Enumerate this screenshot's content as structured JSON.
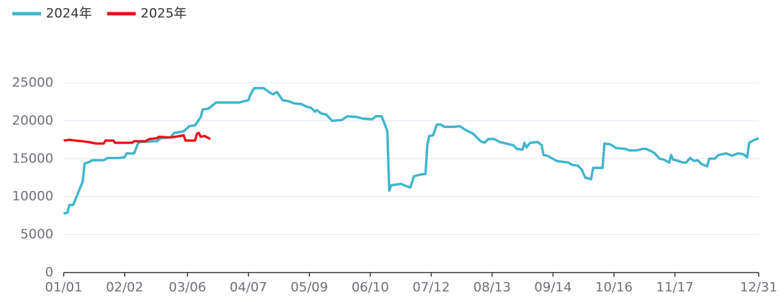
{
  "chart_data": {
    "type": "line",
    "xlim": [
      0,
      365
    ],
    "xticks": [
      {
        "value": 0,
        "label": "01/01"
      },
      {
        "value": 32,
        "label": "02/02"
      },
      {
        "value": 65,
        "label": "03/06"
      },
      {
        "value": 97,
        "label": "04/07"
      },
      {
        "value": 129,
        "label": "05/09"
      },
      {
        "value": 161,
        "label": "06/10"
      },
      {
        "value": 193,
        "label": "07/12"
      },
      {
        "value": 225,
        "label": "08/13"
      },
      {
        "value": 257,
        "label": "09/14"
      },
      {
        "value": 289,
        "label": "10/16"
      },
      {
        "value": 321,
        "label": "11/17"
      },
      {
        "value": 365,
        "label": "12/31"
      }
    ],
    "ylim": [
      0,
      25000
    ],
    "yticks": [
      0,
      5000,
      10000,
      15000,
      20000,
      25000
    ],
    "grid": true,
    "legend": "top-left",
    "series": [
      {
        "name": "2024年",
        "color": "#40b4cc",
        "x": [
          0,
          2,
          3,
          5,
          10,
          11,
          13,
          15,
          21,
          23,
          29,
          32,
          33,
          37,
          39,
          40,
          49,
          51,
          56,
          58,
          63,
          66,
          69,
          72,
          73,
          76,
          80,
          89,
          92,
          95,
          97,
          98,
          100,
          105,
          109,
          110,
          112,
          115,
          118,
          121,
          125,
          127,
          130,
          132,
          133,
          135,
          138,
          141,
          146,
          149,
          154,
          157,
          162,
          164,
          167,
          169,
          170,
          171,
          172,
          177,
          180,
          182,
          184,
          187,
          190,
          191,
          192,
          194,
          196,
          198,
          200,
          205,
          208,
          211,
          215,
          219,
          221,
          223,
          226,
          229,
          236,
          238,
          241,
          242,
          243,
          245,
          249,
          251,
          252,
          254,
          259,
          265,
          267,
          270,
          272,
          274,
          277,
          278,
          283,
          284,
          287,
          289,
          290,
          295,
          297,
          301,
          304,
          306,
          310,
          313,
          315,
          318,
          319,
          320,
          323,
          325,
          327,
          329,
          331,
          333,
          335,
          338,
          339,
          342,
          344,
          348,
          351,
          354,
          357,
          359,
          360,
          362,
          364,
          365
        ],
        "values": [
          7800,
          7900,
          8900,
          8900,
          12000,
          14400,
          14500,
          14800,
          14800,
          15100,
          15100,
          15200,
          15700,
          15700,
          17000,
          17200,
          17300,
          17700,
          17800,
          18400,
          18600,
          19300,
          19400,
          20500,
          21500,
          21600,
          22400,
          22400,
          22400,
          22600,
          22700,
          23400,
          24300,
          24300,
          23600,
          23500,
          23800,
          22700,
          22600,
          22300,
          22200,
          21900,
          21700,
          21200,
          21400,
          21000,
          20800,
          20000,
          20100,
          20600,
          20500,
          20300,
          20200,
          20600,
          20600,
          19300,
          18600,
          10800,
          11500,
          11700,
          11400,
          11200,
          12700,
          12900,
          13000,
          16800,
          18000,
          18100,
          19500,
          19500,
          19200,
          19200,
          19300,
          18800,
          18300,
          17300,
          17100,
          17600,
          17600,
          17200,
          16800,
          16300,
          16200,
          17100,
          16500,
          17100,
          17200,
          16800,
          15500,
          15400,
          14700,
          14500,
          14200,
          14100,
          13600,
          12500,
          12300,
          13800,
          13800,
          17000,
          16900,
          16600,
          16400,
          16300,
          16100,
          16100,
          16300,
          16300,
          15800,
          15000,
          14900,
          14500,
          15500,
          14900,
          14700,
          14500,
          14500,
          15100,
          14700,
          14800,
          14300,
          14000,
          15000,
          15000,
          15500,
          15700,
          15400,
          15700,
          15600,
          15200,
          17100,
          17400,
          17600,
          17700
        ]
      },
      {
        "name": "2025年",
        "color": "#e8121a",
        "x": [
          0,
          3,
          6,
          10,
          13,
          17,
          21,
          22,
          26,
          27,
          36,
          37,
          43,
          45,
          49,
          50,
          56,
          61,
          63,
          64,
          69,
          70,
          71,
          72,
          74,
          77
        ],
        "values": [
          17400,
          17500,
          17400,
          17300,
          17200,
          17000,
          17000,
          17400,
          17400,
          17100,
          17100,
          17300,
          17300,
          17600,
          17700,
          17900,
          17800,
          18000,
          18100,
          17400,
          17400,
          18300,
          18400,
          17900,
          18000,
          17600
        ]
      }
    ]
  }
}
